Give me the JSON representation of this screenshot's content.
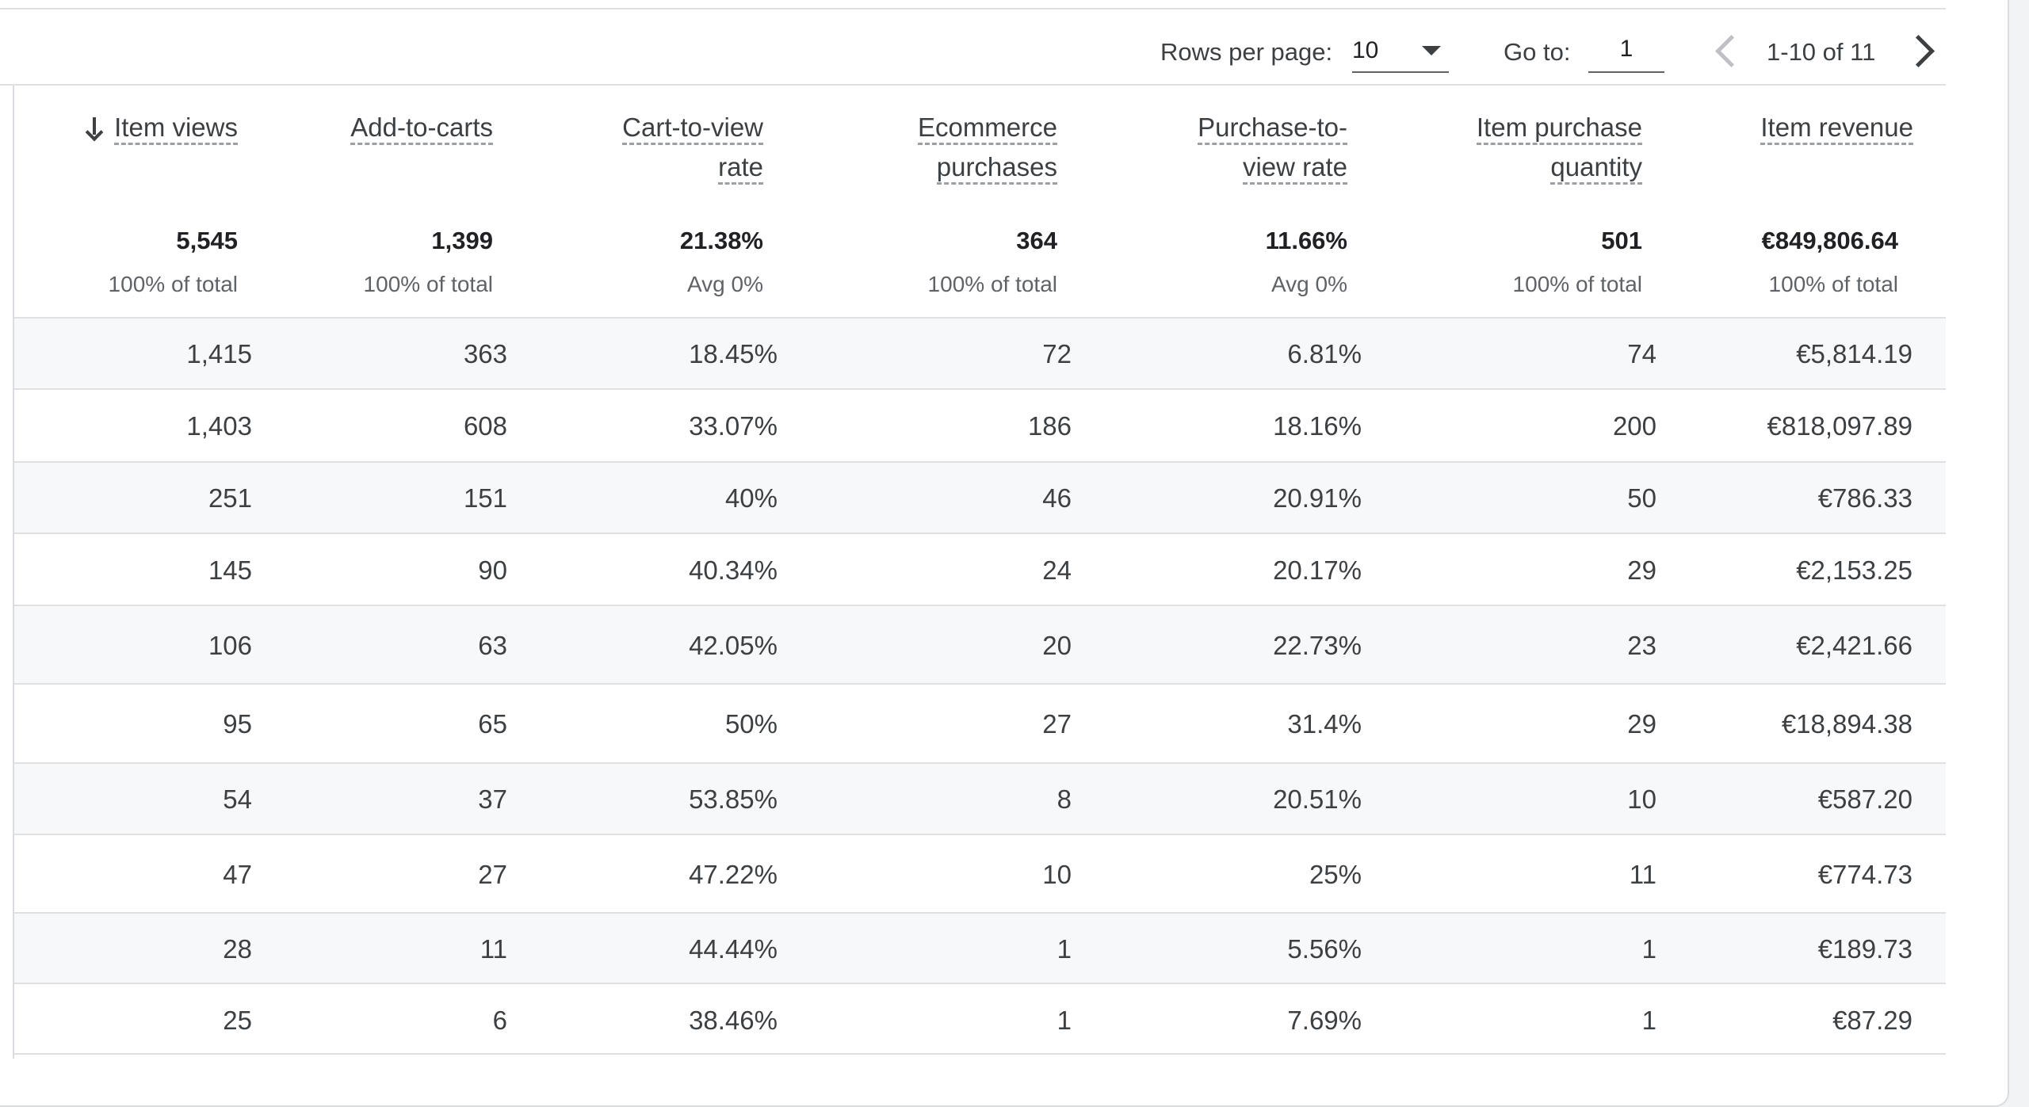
{
  "pagination": {
    "rows_per_page_label": "Rows per page:",
    "rows_per_page_value": "10",
    "goto_label": "Go to:",
    "goto_value": "1",
    "range_text": "1-10 of 11"
  },
  "table": {
    "columns": [
      {
        "key": "item_views",
        "label_lines": [
          "Item views"
        ],
        "sorted": "desc",
        "total": "5,545",
        "subtotal": "100% of total"
      },
      {
        "key": "add_to_carts",
        "label_lines": [
          "Add-to-carts"
        ],
        "total": "1,399",
        "subtotal": "100% of total"
      },
      {
        "key": "cart_to_view_rate",
        "label_lines": [
          "Cart-to-view",
          "rate"
        ],
        "total": "21.38%",
        "subtotal": "Avg 0%"
      },
      {
        "key": "ecommerce_purchases",
        "label_lines": [
          "Ecommerce",
          "purchases"
        ],
        "total": "364",
        "subtotal": "100% of total"
      },
      {
        "key": "purchase_to_view_rate",
        "label_lines": [
          "Purchase-to-",
          "view rate"
        ],
        "total": "11.66%",
        "subtotal": "Avg 0%"
      },
      {
        "key": "item_purchase_quantity",
        "label_lines": [
          "Item purchase",
          "quantity"
        ],
        "total": "501",
        "subtotal": "100% of total"
      },
      {
        "key": "item_revenue",
        "label_lines": [
          "Item revenue"
        ],
        "total": "€849,806.64",
        "subtotal": "100% of total"
      }
    ],
    "rows": [
      [
        "1,415",
        "363",
        "18.45%",
        "72",
        "6.81%",
        "74",
        "€5,814.19"
      ],
      [
        "1,403",
        "608",
        "33.07%",
        "186",
        "18.16%",
        "200",
        "€818,097.89"
      ],
      [
        "251",
        "151",
        "40%",
        "46",
        "20.91%",
        "50",
        "€786.33"
      ],
      [
        "145",
        "90",
        "40.34%",
        "24",
        "20.17%",
        "29",
        "€2,153.25"
      ],
      [
        "106",
        "63",
        "42.05%",
        "20",
        "22.73%",
        "23",
        "€2,421.66"
      ],
      [
        "95",
        "65",
        "50%",
        "27",
        "31.4%",
        "29",
        "€18,894.38"
      ],
      [
        "54",
        "37",
        "53.85%",
        "8",
        "20.51%",
        "10",
        "€587.20"
      ],
      [
        "47",
        "27",
        "47.22%",
        "10",
        "25%",
        "11",
        "€774.73"
      ],
      [
        "28",
        "11",
        "44.44%",
        "1",
        "5.56%",
        "1",
        "€189.73"
      ],
      [
        "25",
        "6",
        "38.46%",
        "1",
        "7.69%",
        "1",
        "€87.29"
      ]
    ]
  },
  "colors": {
    "row_alt_background": "#f7f8f9",
    "border": "#e0e0e0",
    "text": "#3c4043"
  },
  "icons": {
    "sort": "arrow-down-icon",
    "dropdown": "caret-down-icon",
    "prev": "chevron-left-icon",
    "next": "chevron-right-icon"
  }
}
